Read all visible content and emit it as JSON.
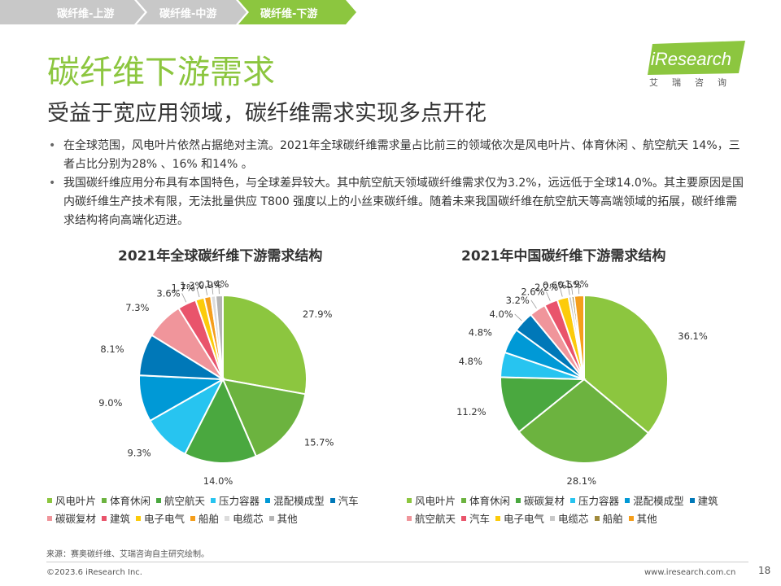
{
  "tabs": [
    {
      "label": "碳纤维-上游",
      "active": false
    },
    {
      "label": "碳纤维-中游",
      "active": false
    },
    {
      "label": "碳纤维-下游",
      "active": true
    }
  ],
  "logo": {
    "text": "iResearch",
    "sub": "艾瑞咨询"
  },
  "title": "碳纤维下游需求",
  "subtitle": "受益于宽应用领域，碳纤维需求实现多点开花",
  "bullets": [
    "在全球范围，风电叶片依然占据绝对主流。2021年全球碳纤维需求量占比前三的领域依次是风电叶片、体育休闲 、航空航天 14%，三者占比分别为28% 、16% 和14% 。",
    "我国碳纤维应用分布具有本国特色，与全球差异较大。其中航空航天领域碳纤维需求仅为3.2%，远远低于全球14.0%。其主要原因是国内碳纤维生产技术有限，无法批量供应 T800 强度以上的小丝束碳纤维。随着未来我国碳纤维在航空航天等高端领域的拓展，碳纤维需求结构将向高端化迈进。"
  ],
  "chart_data": [
    {
      "type": "pie",
      "title": "2021年全球碳纤维下游需求结构",
      "series": [
        {
          "name": "风电叶片",
          "value": 27.9,
          "label": "27.9%",
          "color": "#8cc63f"
        },
        {
          "name": "体育休闲",
          "value": 15.7,
          "label": "15.7%",
          "color": "#6cb33f"
        },
        {
          "name": "航空航天",
          "value": 14.0,
          "label": "14.0%",
          "color": "#4aa83f"
        },
        {
          "name": "压力容器",
          "value": 9.3,
          "label": "9.3%",
          "color": "#27c4f0"
        },
        {
          "name": "混配模成型",
          "value": 9.0,
          "label": "9.0%",
          "color": "#0099d6"
        },
        {
          "name": "汽车",
          "value": 8.1,
          "label": "8.1%",
          "color": "#0078b8"
        },
        {
          "name": "碳碳复材",
          "value": 7.3,
          "label": "7.3%",
          "color": "#f0959b"
        },
        {
          "name": "建筑",
          "value": 3.6,
          "label": "3.6%",
          "color": "#e9546b"
        },
        {
          "name": "电子电气",
          "value": 1.7,
          "label": "1.7%",
          "color": "#fccb0a"
        },
        {
          "name": "船舶",
          "value": 1.3,
          "label": "1.3%",
          "color": "#f59e1b"
        },
        {
          "name": "电缆芯",
          "value": 0.9,
          "label": "0.9%",
          "color": "#dcdcdc"
        },
        {
          "name": "其他",
          "value": 1.4,
          "label": "1.4%",
          "color": "#b5b5b5"
        }
      ],
      "legend_position": "bottom"
    },
    {
      "type": "pie",
      "title": "2021年中国碳纤维下游需求结构",
      "series": [
        {
          "name": "风电叶片",
          "value": 36.1,
          "label": "36.1%",
          "color": "#8cc63f"
        },
        {
          "name": "体育休闲",
          "value": 28.1,
          "label": "28.1%",
          "color": "#6cb33f"
        },
        {
          "name": "碳碳复材",
          "value": 11.2,
          "label": "11.2%",
          "color": "#4aa83f"
        },
        {
          "name": "压力容器",
          "value": 4.8,
          "label": "4.8%",
          "color": "#27c4f0"
        },
        {
          "name": "混配模成型",
          "value": 4.8,
          "label": "4.8%",
          "color": "#0099d6"
        },
        {
          "name": "建筑",
          "value": 4.0,
          "label": "4.0%",
          "color": "#0078b8"
        },
        {
          "name": "航空航天",
          "value": 3.2,
          "label": "3.2%",
          "color": "#f0959b"
        },
        {
          "name": "汽车",
          "value": 2.6,
          "label": "2.6%",
          "color": "#e9546b"
        },
        {
          "name": "电子电气",
          "value": 2.2,
          "label": "2.2%",
          "color": "#fccb0a"
        },
        {
          "name": "电缆芯",
          "value": 0.6,
          "label": "0.6%",
          "color": "#c8c8c8"
        },
        {
          "name": "船舶",
          "value": 0.5,
          "label": "0.5%",
          "color": "#a08a3c"
        },
        {
          "name": "其他",
          "value": 1.9,
          "label": "1.9%",
          "color": "#f59e1b"
        }
      ],
      "legend_position": "bottom"
    }
  ],
  "source": "来源：赛奥碳纤维、艾瑞咨询自主研究绘制。",
  "copyright": "©2023.6 iResearch Inc.",
  "website": "www.iresearch.com.cn",
  "page_number": "18"
}
